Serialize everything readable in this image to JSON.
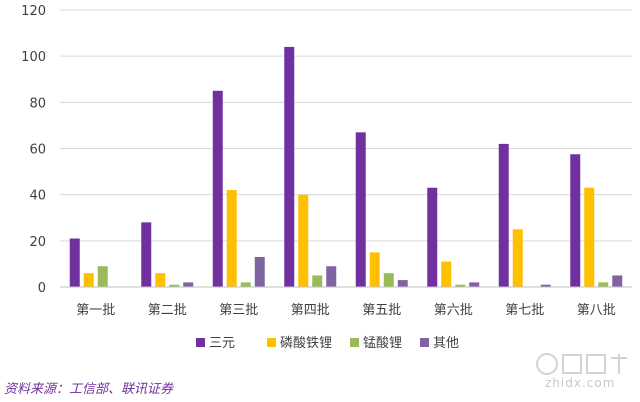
{
  "chart_data": {
    "type": "bar",
    "categories": [
      "第一批",
      "第二批",
      "第三批",
      "第四批",
      "第五批",
      "第六批",
      "第七批",
      "第八批"
    ],
    "series": [
      {
        "name": "三元",
        "color": "#7030a0",
        "values": [
          21,
          28,
          85,
          104,
          67,
          43,
          62,
          57.5
        ]
      },
      {
        "name": "磷酸铁锂",
        "color": "#ffc000",
        "values": [
          6,
          6,
          42,
          40,
          15,
          11,
          25,
          43
        ]
      },
      {
        "name": "锰酸锂",
        "color": "#9bbb59",
        "values": [
          9,
          1,
          2,
          5,
          6,
          1,
          0,
          2
        ]
      },
      {
        "name": "其他",
        "color": "#8064a2",
        "values": [
          0,
          2,
          13,
          9,
          3,
          2,
          1,
          5
        ]
      }
    ],
    "ylim": [
      0,
      120
    ],
    "yticks": [
      0,
      20,
      40,
      60,
      80,
      100,
      120
    ],
    "grid": true,
    "legend_position": "bottom",
    "title": "",
    "xlabel": "",
    "ylabel": ""
  },
  "source_note": "资料来源：工信部、联讯证券",
  "watermark": {
    "icon": "zhidx-logo-icon",
    "text": "zhidx.com"
  }
}
